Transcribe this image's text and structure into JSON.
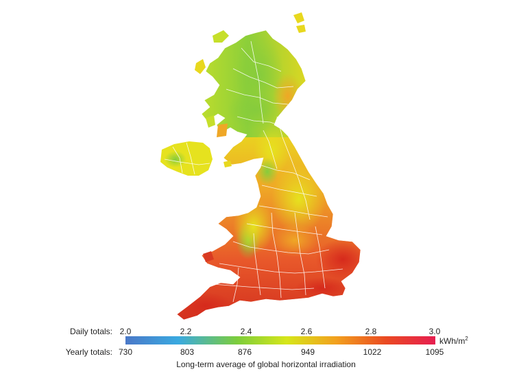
{
  "legend": {
    "daily_label": "Daily totals:",
    "yearly_label": "Yearly totals:",
    "daily_ticks": [
      "2.0",
      "2.2",
      "2.4",
      "2.6",
      "2.8",
      "3.0"
    ],
    "yearly_ticks": [
      "730",
      "803",
      "876",
      "949",
      "1022",
      "1095"
    ],
    "unit": "kWh/m",
    "unit_superscript": "2",
    "caption": "Long-term average of global horizontal irradiation",
    "colors": [
      "#4a78c8",
      "#3aa9e0",
      "#7ccd3c",
      "#d6e61a",
      "#f2a01e",
      "#ea4a22",
      "#e61e50"
    ]
  },
  "map": {
    "colors": {
      "green": "#8ccf3a",
      "yellow_green": "#c6df2a",
      "yellow": "#e8e21e",
      "orange": "#efa726",
      "red_orange": "#e8582a",
      "red": "#d93a22",
      "border": "#ffffff"
    }
  }
}
